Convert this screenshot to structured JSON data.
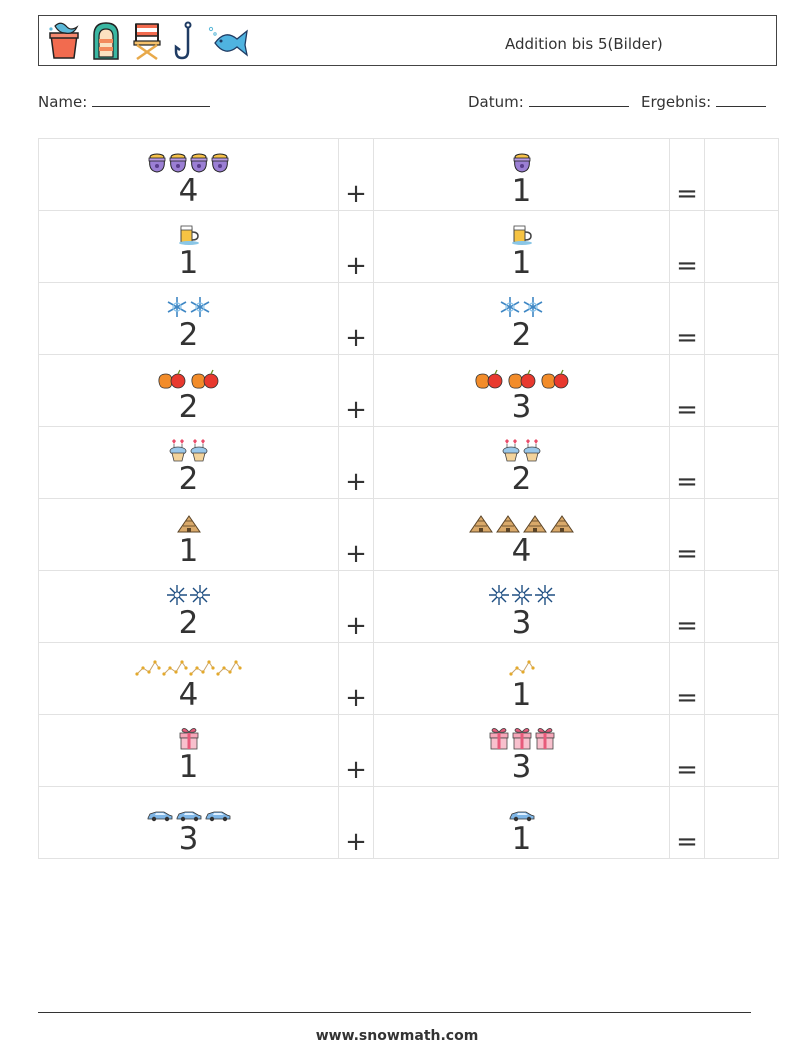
{
  "header": {
    "title": "Addition bis 5(Bilder)",
    "icons": [
      "beach-bucket-icon",
      "inflatable-raft-icon",
      "folding-chair-icon",
      "fishing-hook-icon",
      "fish-icon"
    ]
  },
  "info": {
    "name_label": "Name:",
    "date_label": "Datum:",
    "result_label": "Ergebnis:"
  },
  "problems": [
    {
      "a": "4",
      "b": "1",
      "picture": "cauldron-icon"
    },
    {
      "a": "1",
      "b": "1",
      "picture": "beer-mug-icon"
    },
    {
      "a": "2",
      "b": "2",
      "picture": "snowflake-icon"
    },
    {
      "a": "2",
      "b": "3",
      "picture": "apple-pear-icon"
    },
    {
      "a": "2",
      "b": "2",
      "picture": "cupcake-hearts-icon"
    },
    {
      "a": "1",
      "b": "4",
      "picture": "pyramid-icon"
    },
    {
      "a": "2",
      "b": "3",
      "picture": "snowflake-outline-icon"
    },
    {
      "a": "4",
      "b": "1",
      "picture": "constellation-icon"
    },
    {
      "a": "1",
      "b": "3",
      "picture": "gift-box-icon"
    },
    {
      "a": "3",
      "b": "1",
      "picture": "car-icon"
    }
  ],
  "operators": {
    "plus": "+",
    "equals": "="
  },
  "footer": {
    "url": "www.snowmath.com"
  }
}
